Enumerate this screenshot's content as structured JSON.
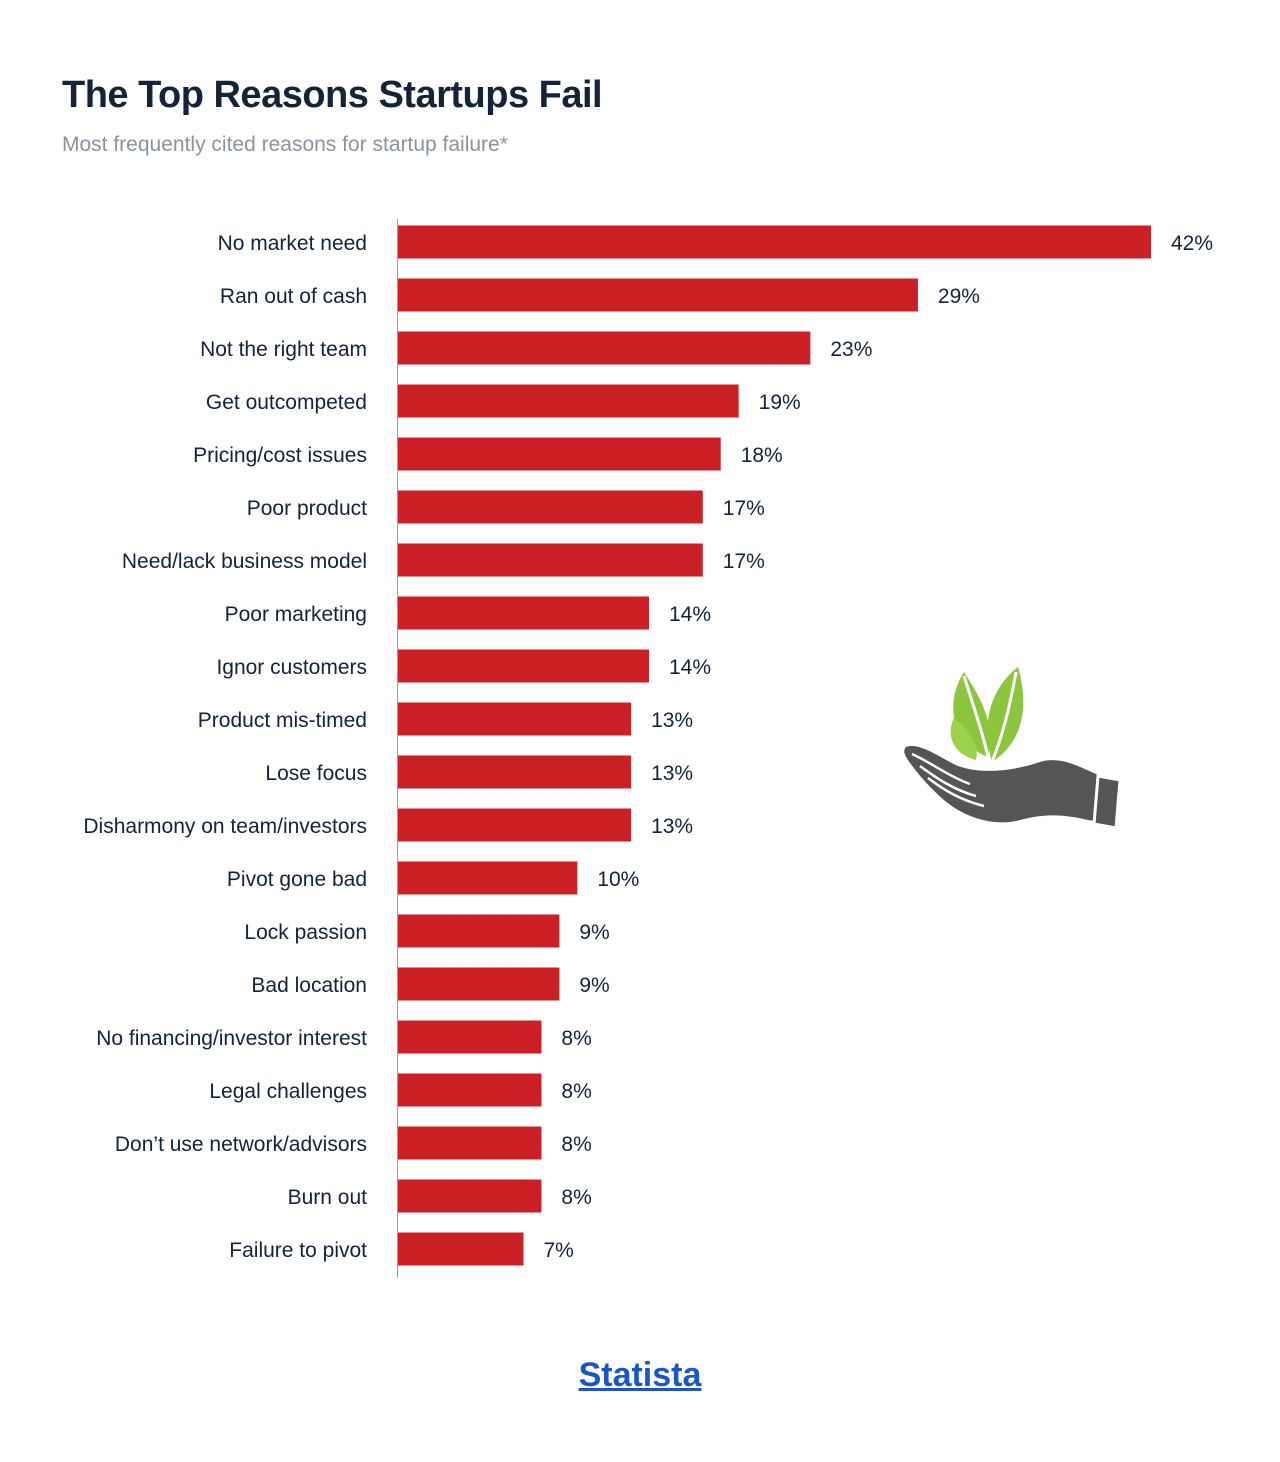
{
  "title": "The Top Reasons Startups Fail",
  "subtitle": "Most frequently cited reasons for startup failure*",
  "source_label": "Statista",
  "colors": {
    "bar": "#cc2027",
    "text": "#13233a",
    "subtitle": "#8a949e",
    "link": "#1a56c8",
    "leaf": "#8cc63f",
    "hand": "#555555"
  },
  "illustration": {
    "icon": "hand-holding-leaves-icon"
  },
  "chart_data": {
    "type": "bar",
    "orientation": "horizontal",
    "title": "The Top Reasons Startups Fail",
    "subtitle": "Most frequently cited reasons for startup failure*",
    "xlabel": "",
    "ylabel": "",
    "unit": "%",
    "xlim": [
      0,
      42
    ],
    "grid": false,
    "legend": "none",
    "categories": [
      "No market need",
      "Ran out of cash",
      "Not the right team",
      "Get outcompeted",
      "Pricing/cost issues",
      "Poor product",
      "Need/lack business model",
      "Poor  marketing",
      "Ignor customers",
      "Product mis-timed",
      "Lose focus",
      "Disharmony on team/investors",
      "Pivot gone bad",
      "Lock passion",
      "Bad location",
      "No financing/investor interest",
      "Legal challenges",
      "Don’t use network/advisors",
      "Burn out",
      "Failure to pivot"
    ],
    "values": [
      42,
      29,
      23,
      19,
      18,
      17,
      17,
      14,
      14,
      13,
      13,
      13,
      10,
      9,
      9,
      8,
      8,
      8,
      8,
      7
    ],
    "value_labels": [
      "42%",
      "29%",
      "23%",
      "19%",
      "18%",
      "17%",
      "17%",
      "14%",
      "14%",
      "13%",
      "13%",
      "13%",
      "10%",
      "9%",
      "9%",
      "8%",
      "8%",
      "8%",
      "8%",
      "7%"
    ]
  }
}
